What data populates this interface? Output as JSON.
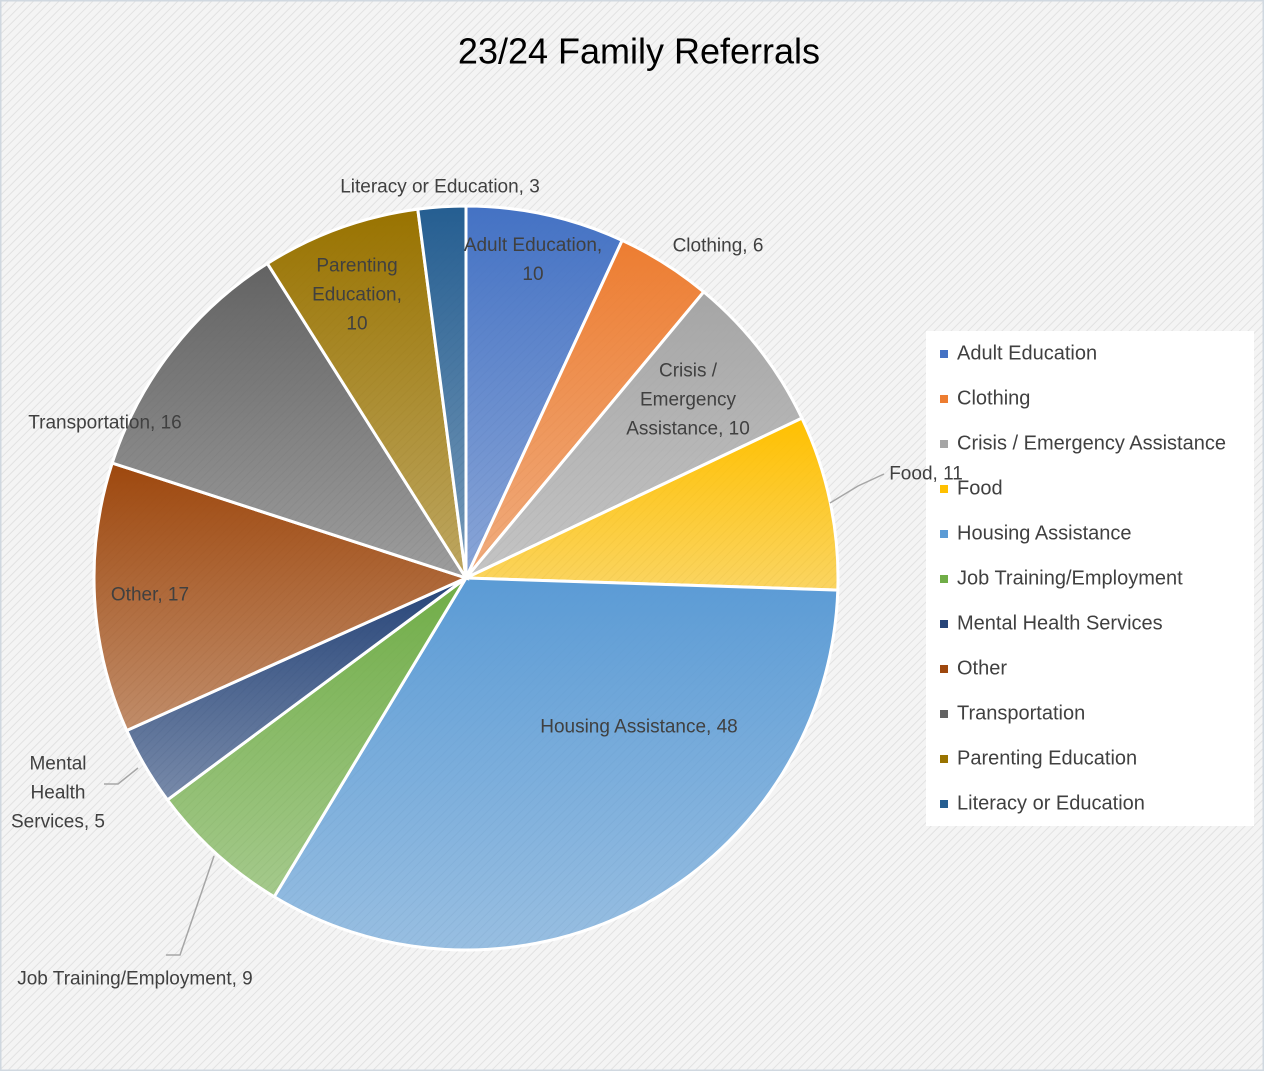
{
  "chart_data": {
    "type": "pie",
    "title": "23/24 Family Referrals",
    "categories": [
      "Adult Education",
      "Clothing",
      "Crisis / Emergency Assistance",
      "Food",
      "Housing Assistance",
      "Job Training/Employment",
      "Mental Health Services",
      "Other",
      "Transportation",
      "Parenting Education",
      "Literacy or Education"
    ],
    "values": [
      10,
      6,
      10,
      11,
      48,
      9,
      5,
      17,
      16,
      10,
      3
    ],
    "value_labels": [
      "Adult Education, 10",
      "Clothing, 6",
      "Crisis / Emergency Assistance, 10",
      "Food, 11",
      "Housing Assistance, 48",
      "Job Training/Employment, 9",
      "Mental Health Services, 5",
      "Other, 17",
      "Transportation, 16",
      "Parenting Education, 10",
      "Literacy or Education, 3"
    ],
    "colors": [
      "#4472c4",
      "#ed7d31",
      "#a5a5a5",
      "#ffc000",
      "#5b9bd5",
      "#70ad47",
      "#264478",
      "#9e480e",
      "#636363",
      "#997300",
      "#255e91"
    ],
    "legend": "right"
  }
}
